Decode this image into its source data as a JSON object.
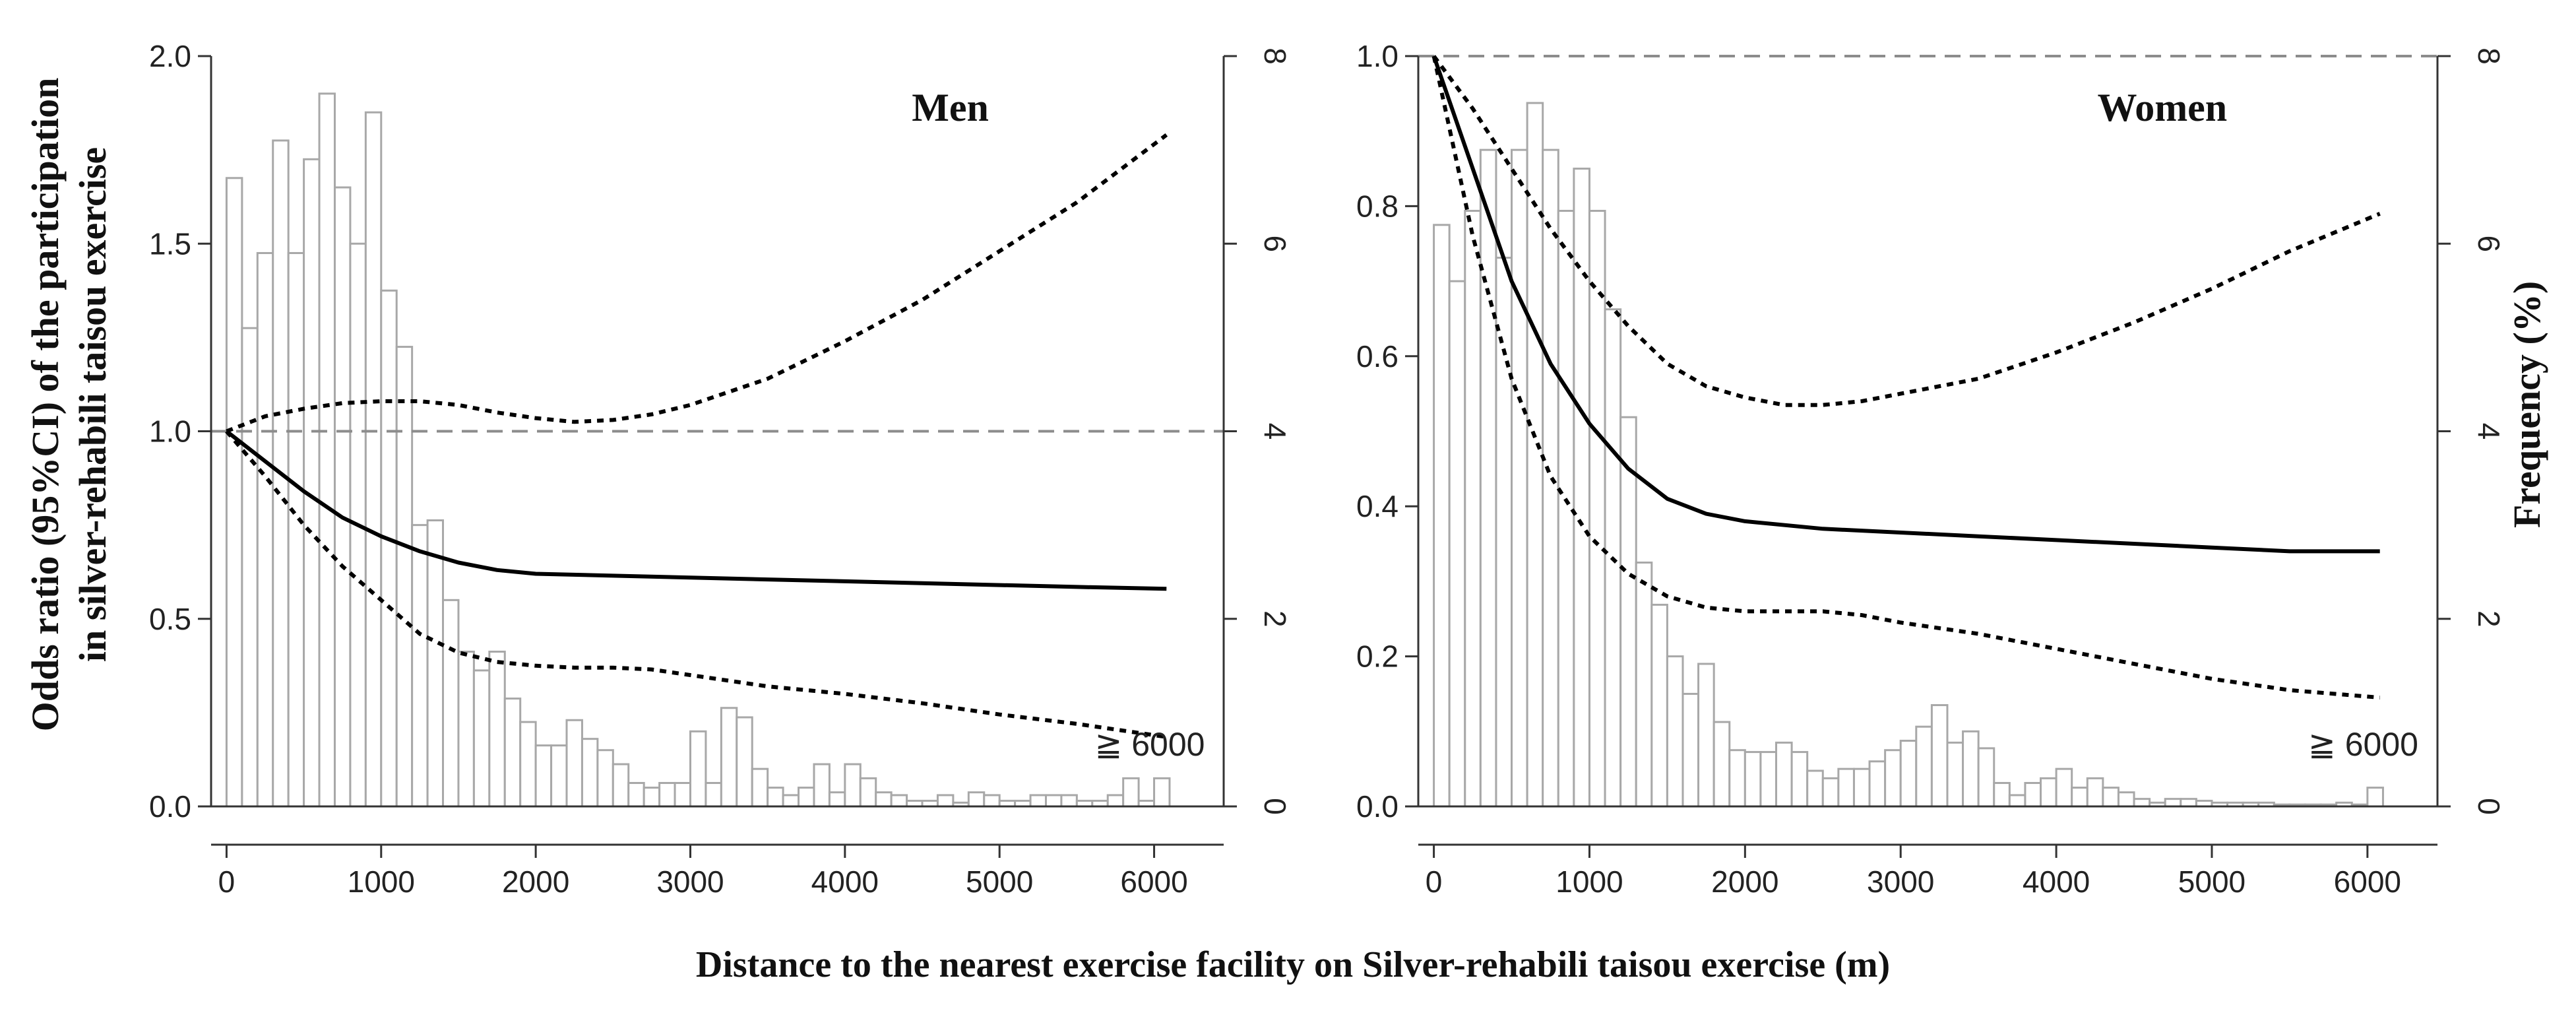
{
  "chart_data": {
    "type": "line",
    "shared": {
      "xlabel": "Distance to the nearest exercise facility on Silver-rehabili taisou exercise (m)",
      "ylabel_left": "Odds ratio (95%CI) of the participation in silver-rehabili taisou exercise",
      "ylabel_left_lines": [
        "Odds ratio (95%CI) of the participation",
        "in silver-rehabili taisou exercise"
      ],
      "ylabel_right": "Frequency (%)",
      "x_ticks": [
        0,
        1000,
        2000,
        3000,
        4000,
        5000,
        6000
      ],
      "x_tick_labels": [
        "0",
        "1000",
        "2000",
        "3000",
        "4000",
        "5000",
        "6000"
      ],
      "xlim": [
        -100,
        6450
      ],
      "right_ylim": [
        0,
        8
      ],
      "right_ticks": [
        0,
        2,
        4,
        6,
        8
      ],
      "right_tick_labels": [
        "0",
        "2",
        "4",
        "6",
        "8"
      ],
      "histogram_bin_width": 100,
      "histogram_start": 0
    },
    "panels": [
      {
        "title": "Men",
        "annotation": "≧ 6000",
        "ylim": [
          0,
          2.0
        ],
        "y_ticks": [
          0,
          0.5,
          1.0,
          1.5,
          2.0
        ],
        "y_tick_labels": [
          "0.0",
          "0.5",
          "1.0",
          "1.5",
          "2.0"
        ],
        "reference_line": 1.0,
        "histogram_frequency": [
          6.7,
          5.1,
          5.9,
          7.1,
          5.9,
          6.9,
          7.6,
          6.6,
          6.0,
          7.4,
          5.5,
          4.9,
          3.0,
          3.05,
          2.2,
          1.65,
          1.45,
          1.65,
          1.15,
          0.9,
          0.65,
          0.65,
          0.92,
          0.72,
          0.6,
          0.45,
          0.25,
          0.2,
          0.25,
          0.25,
          0.8,
          0.25,
          1.05,
          0.95,
          0.4,
          0.2,
          0.12,
          0.2,
          0.45,
          0.15,
          0.45,
          0.3,
          0.15,
          0.12,
          0.06,
          0.06,
          0.12,
          0.04,
          0.15,
          0.12,
          0.06,
          0.06,
          0.12,
          0.12,
          0.12,
          0.06,
          0.06,
          0.12,
          0.3,
          0.06,
          0.3
        ],
        "series": [
          {
            "name": "Odds ratio",
            "style": "solid",
            "x": [
              0,
              250,
              500,
              750,
              1000,
              1250,
              1500,
              1750,
              2000,
              2500,
              3000,
              3500,
              4000,
              4500,
              5000,
              5500,
              6080
            ],
            "y": [
              1.0,
              0.92,
              0.84,
              0.77,
              0.72,
              0.68,
              0.65,
              0.63,
              0.62,
              0.615,
              0.61,
              0.605,
              0.6,
              0.595,
              0.59,
              0.585,
              0.58
            ]
          },
          {
            "name": "95% CI upper",
            "style": "dashed",
            "x": [
              0,
              250,
              500,
              750,
              1000,
              1250,
              1500,
              1750,
              2000,
              2250,
              2500,
              2750,
              3000,
              3500,
              4000,
              4500,
              5000,
              5500,
              6080
            ],
            "y": [
              1.0,
              1.04,
              1.06,
              1.075,
              1.08,
              1.08,
              1.07,
              1.05,
              1.035,
              1.025,
              1.03,
              1.045,
              1.07,
              1.14,
              1.24,
              1.35,
              1.48,
              1.61,
              1.79
            ]
          },
          {
            "name": "95% CI lower",
            "style": "dashed",
            "x": [
              0,
              250,
              500,
              750,
              1000,
              1250,
              1500,
              1750,
              2000,
              2250,
              2500,
              2750,
              3000,
              3500,
              4000,
              4500,
              5000,
              5500,
              6080
            ],
            "y": [
              1.0,
              0.88,
              0.75,
              0.64,
              0.55,
              0.46,
              0.41,
              0.385,
              0.375,
              0.37,
              0.37,
              0.365,
              0.35,
              0.32,
              0.3,
              0.275,
              0.245,
              0.22,
              0.185
            ]
          }
        ]
      },
      {
        "title": "Women",
        "annotation": "≧ 6000",
        "ylim": [
          0,
          1.0
        ],
        "y_ticks": [
          0,
          0.2,
          0.4,
          0.6,
          0.8,
          1.0
        ],
        "y_tick_labels": [
          "0.0",
          "0.2",
          "0.4",
          "0.6",
          "0.8",
          "1.0"
        ],
        "reference_line": 1.0,
        "histogram_frequency": [
          6.2,
          5.6,
          6.35,
          7.0,
          5.85,
          7.0,
          7.5,
          7.0,
          6.35,
          6.8,
          6.35,
          5.3,
          4.15,
          2.6,
          2.15,
          1.6,
          1.2,
          1.52,
          0.9,
          0.6,
          0.58,
          0.58,
          0.68,
          0.58,
          0.38,
          0.3,
          0.4,
          0.4,
          0.48,
          0.6,
          0.7,
          0.85,
          1.08,
          0.68,
          0.8,
          0.62,
          0.25,
          0.12,
          0.25,
          0.3,
          0.4,
          0.2,
          0.3,
          0.2,
          0.15,
          0.08,
          0.04,
          0.08,
          0.08,
          0.06,
          0.04,
          0.04,
          0.04,
          0.04,
          0.02,
          0.02,
          0.02,
          0.02,
          0.04,
          0.02,
          0.2
        ],
        "series": [
          {
            "name": "Odds ratio",
            "style": "solid",
            "x": [
              0,
              250,
              500,
              750,
              1000,
              1250,
              1500,
              1750,
              2000,
              2500,
              3000,
              3500,
              4000,
              4500,
              5000,
              5500,
              6080
            ],
            "y": [
              1.0,
              0.85,
              0.7,
              0.59,
              0.51,
              0.45,
              0.41,
              0.39,
              0.38,
              0.37,
              0.365,
              0.36,
              0.355,
              0.35,
              0.345,
              0.34,
              0.34
            ]
          },
          {
            "name": "95% CI upper",
            "style": "dashed",
            "x": [
              0,
              250,
              500,
              750,
              1000,
              1250,
              1500,
              1750,
              2000,
              2250,
              2500,
              2750,
              3000,
              3500,
              4000,
              4500,
              5000,
              5500,
              6080
            ],
            "y": [
              1.0,
              0.93,
              0.85,
              0.77,
              0.7,
              0.64,
              0.59,
              0.56,
              0.545,
              0.535,
              0.535,
              0.54,
              0.55,
              0.57,
              0.605,
              0.645,
              0.69,
              0.74,
              0.79
            ]
          },
          {
            "name": "95% CI lower",
            "style": "dashed",
            "x": [
              0,
              250,
              500,
              750,
              1000,
              1250,
              1500,
              1750,
              2000,
              2250,
              2500,
              2750,
              3000,
              3500,
              4000,
              4500,
              5000,
              5500,
              6080
            ],
            "y": [
              1.0,
              0.76,
              0.57,
              0.44,
              0.36,
              0.31,
              0.28,
              0.265,
              0.26,
              0.26,
              0.26,
              0.255,
              0.245,
              0.23,
              0.21,
              0.19,
              0.17,
              0.155,
              0.145
            ]
          }
        ]
      }
    ]
  }
}
